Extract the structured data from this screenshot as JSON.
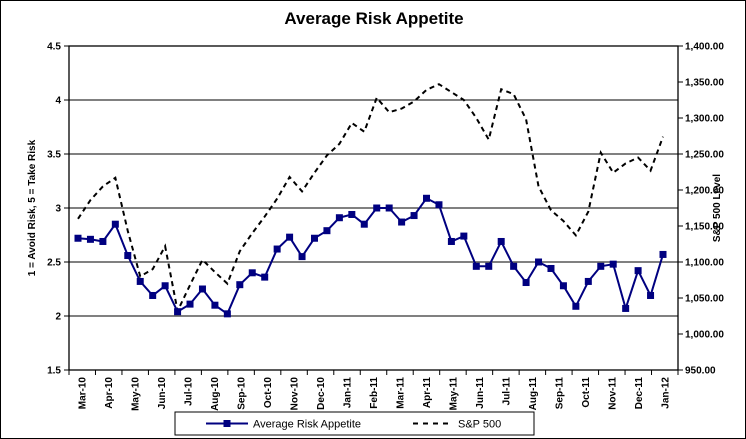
{
  "chart_data": {
    "type": "line",
    "title": "Average Risk Appetite",
    "x_unit": "semi-monthly",
    "x_labels": [
      "Mar-10",
      "Apr-10",
      "May-10",
      "Jun-10",
      "Jul-10",
      "Aug-10",
      "Sep-10",
      "Oct-10",
      "Nov-10",
      "Dec-10",
      "Jan-11",
      "Feb-11",
      "Mar-11",
      "Apr-11",
      "May-11",
      "Jun-11",
      "Jul-11",
      "Aug-11",
      "Sep-11",
      "Oct-11",
      "Nov-11",
      "Dec-11",
      "Jan-12"
    ],
    "left_axis": {
      "title": "1 = Avoid Risk, 5 = Take Risk",
      "min": 1.5,
      "max": 4.5,
      "step": 0.5,
      "tick_labels": [
        "4.5",
        "4",
        "3.5",
        "3",
        "2.5",
        "2",
        "1.5"
      ]
    },
    "right_axis": {
      "title": "S&P 500 Level",
      "min": 950,
      "max": 1400,
      "step": 50,
      "tick_labels": [
        "1,400.00",
        "1,350.00",
        "1,300.00",
        "1,250.00",
        "1,200.00",
        "1,150.00",
        "1,100.00",
        "1,050.00",
        "1,000.00",
        "950.00"
      ]
    },
    "grid": "horizontal",
    "legend": {
      "position": "bottom",
      "entries": [
        "Average Risk Appetite",
        "S&P 500"
      ]
    },
    "series": [
      {
        "name": "Average Risk Appetite",
        "axis": "left",
        "color": "#000080",
        "style": "solid",
        "marker": "square",
        "values": [
          2.72,
          2.71,
          2.69,
          2.85,
          2.56,
          2.32,
          2.19,
          2.28,
          2.04,
          2.11,
          2.25,
          2.1,
          2.02,
          2.29,
          2.4,
          2.36,
          2.62,
          2.73,
          2.55,
          2.72,
          2.79,
          2.91,
          2.94,
          2.85,
          3.0,
          3.0,
          2.87,
          2.93,
          3.09,
          3.03,
          2.69,
          2.74,
          2.46,
          2.46,
          2.69,
          2.46,
          2.31,
          2.5,
          2.44,
          2.28,
          2.09,
          2.32,
          2.46,
          2.48,
          2.07,
          2.42,
          2.19,
          2.57
        ]
      },
      {
        "name": "S&P 500",
        "axis": "right",
        "color": "#000000",
        "style": "dashed",
        "marker": "none",
        "values": [
          1160,
          1186,
          1205,
          1217,
          1143,
          1080,
          1090,
          1122,
          1032,
          1068,
          1103,
          1086,
          1070,
          1115,
          1140,
          1163,
          1188,
          1218,
          1198,
          1224,
          1248,
          1264,
          1293,
          1281,
          1328,
          1308,
          1313,
          1323,
          1339,
          1347,
          1336,
          1325,
          1300,
          1270,
          1340,
          1333,
          1298,
          1205,
          1172,
          1157,
          1137,
          1170,
          1252,
          1224,
          1237,
          1245,
          1227,
          1274
        ]
      }
    ]
  },
  "colors": {
    "background": "#FFFFFF",
    "border": "#000000",
    "grid": "#000000",
    "risk_line": "#000080",
    "sp500_line": "#000000"
  }
}
